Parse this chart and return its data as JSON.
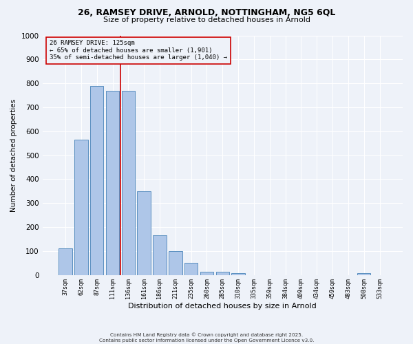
{
  "title_line1": "26, RAMSEY DRIVE, ARNOLD, NOTTINGHAM, NG5 6QL",
  "title_line2": "Size of property relative to detached houses in Arnold",
  "xlabel": "Distribution of detached houses by size in Arnold",
  "ylabel": "Number of detached properties",
  "categories": [
    "37sqm",
    "62sqm",
    "87sqm",
    "111sqm",
    "136sqm",
    "161sqm",
    "186sqm",
    "211sqm",
    "235sqm",
    "260sqm",
    "285sqm",
    "310sqm",
    "335sqm",
    "359sqm",
    "384sqm",
    "409sqm",
    "434sqm",
    "459sqm",
    "483sqm",
    "508sqm",
    "533sqm"
  ],
  "values": [
    110,
    565,
    790,
    770,
    770,
    350,
    165,
    100,
    50,
    12,
    12,
    8,
    0,
    0,
    0,
    0,
    0,
    0,
    0,
    8,
    0
  ],
  "bar_color": "#aec6e8",
  "bar_edge_color": "#5a8fc0",
  "vline_color": "#cc0000",
  "vline_index": 3.5,
  "annotation_title": "26 RAMSEY DRIVE: 125sqm",
  "annotation_line1": "← 65% of detached houses are smaller (1,901)",
  "annotation_line2": "35% of semi-detached houses are larger (1,040) →",
  "annotation_box_color": "#cc0000",
  "ylim": [
    0,
    1000
  ],
  "yticks": [
    0,
    100,
    200,
    300,
    400,
    500,
    600,
    700,
    800,
    900,
    1000
  ],
  "bg_color": "#eef2f9",
  "grid_color": "#ffffff",
  "footer_line1": "Contains HM Land Registry data © Crown copyright and database right 2025.",
  "footer_line2": "Contains public sector information licensed under the Open Government Licence v3.0."
}
